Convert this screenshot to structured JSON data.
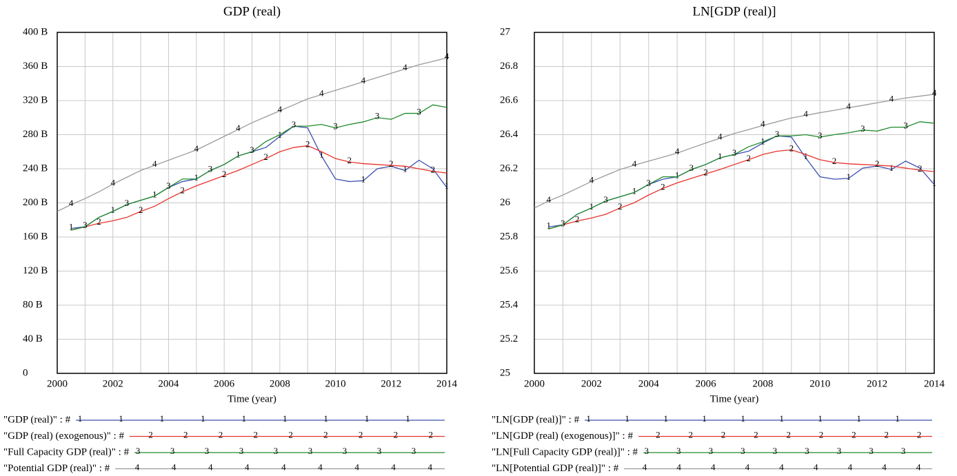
{
  "chart_data": [
    {
      "type": "line",
      "title": "GDP (real)",
      "x_label": "Time (year)",
      "grid": true,
      "xlim": [
        2000,
        2014
      ],
      "xticks": [
        2000,
        2002,
        2004,
        2006,
        2008,
        2010,
        2012,
        2014
      ],
      "ylim": [
        0,
        400000000000.0
      ],
      "yticks": [
        0,
        {
          "value": 40000000000.0,
          "label": "40 B"
        },
        {
          "value": 80000000000.0,
          "label": "80 B"
        },
        {
          "value": 120000000000.0,
          "label": "120 B"
        },
        {
          "value": 160000000000.0,
          "label": "160 B"
        },
        {
          "value": 200000000000.0,
          "label": "200 B"
        },
        {
          "value": 240000000000.0,
          "label": "240 B"
        },
        {
          "value": 280000000000.0,
          "label": "280 B"
        },
        {
          "value": 320000000000.0,
          "label": "320 B"
        },
        {
          "value": 360000000000.0,
          "label": "360 B"
        },
        {
          "value": 400000000000.0,
          "label": "400 B"
        }
      ],
      "x": [
        2000,
        2000.5,
        2001,
        2001.5,
        2002,
        2002.5,
        2003,
        2003.5,
        2004,
        2004.5,
        2005,
        2005.5,
        2006,
        2006.5,
        2007,
        2007.5,
        2008,
        2008.5,
        2009,
        2009.5,
        2010,
        2010.5,
        2011,
        2011.5,
        2012,
        2012.5,
        2013,
        2013.5,
        2014
      ],
      "series": [
        {
          "name": "\"GDP (real)\" : #",
          "marker": "1",
          "color": "#3a4fb0",
          "values": [
            null,
            170000000000.0,
            172000000000.0,
            183000000000.0,
            190000000000.0,
            198000000000.0,
            203000000000.0,
            208000000000.0,
            218000000000.0,
            225000000000.0,
            228000000000.0,
            238000000000.0,
            245000000000.0,
            255000000000.0,
            260000000000.0,
            265000000000.0,
            278000000000.0,
            290000000000.0,
            288000000000.0,
            255000000000.0,
            228000000000.0,
            225000000000.0,
            226000000000.0,
            240000000000.0,
            243000000000.0,
            238000000000.0,
            250000000000.0,
            240000000000.0,
            218000000000.0
          ]
        },
        {
          "name": "\"GDP (real) (exogenous)\" : #",
          "marker": "2",
          "color": "#e8322c",
          "values": [
            null,
            168000000000.0,
            172000000000.0,
            176000000000.0,
            179000000000.0,
            183000000000.0,
            190000000000.0,
            196000000000.0,
            205000000000.0,
            213000000000.0,
            220000000000.0,
            226000000000.0,
            232000000000.0,
            238000000000.0,
            245000000000.0,
            252000000000.0,
            260000000000.0,
            265000000000.0,
            267000000000.0,
            260000000000.0,
            252000000000.0,
            248000000000.0,
            246000000000.0,
            245000000000.0,
            244000000000.0,
            243000000000.0,
            240000000000.0,
            237000000000.0,
            235000000000.0
          ]
        },
        {
          "name": "\"Full Capacity GDP (real)\" : #",
          "marker": "3",
          "color": "#1f8a2a",
          "values": [
            null,
            168000000000.0,
            172000000000.0,
            183000000000.0,
            190000000000.0,
            198000000000.0,
            203000000000.0,
            208000000000.0,
            218000000000.0,
            228000000000.0,
            228000000000.0,
            238000000000.0,
            245000000000.0,
            255000000000.0,
            260000000000.0,
            272000000000.0,
            280000000000.0,
            290000000000.0,
            290000000000.0,
            292000000000.0,
            288000000000.0,
            292000000000.0,
            295000000000.0,
            300000000000.0,
            298000000000.0,
            305000000000.0,
            305000000000.0,
            315000000000.0,
            312000000000.0
          ]
        },
        {
          "name": "\"Potential GDP (real)\" : #",
          "marker": "4",
          "color": "#9a9a9a",
          "values": [
            190000000000.0,
            198000000000.0,
            205000000000.0,
            213000000000.0,
            222000000000.0,
            230000000000.0,
            238000000000.0,
            244000000000.0,
            250000000000.0,
            256000000000.0,
            262000000000.0,
            270000000000.0,
            278000000000.0,
            286000000000.0,
            294000000000.0,
            301000000000.0,
            308000000000.0,
            315000000000.0,
            322000000000.0,
            327000000000.0,
            332000000000.0,
            337000000000.0,
            342000000000.0,
            347000000000.0,
            352000000000.0,
            357000000000.0,
            362000000000.0,
            366000000000.0,
            370000000000.0
          ]
        }
      ]
    },
    {
      "type": "line",
      "title": "LN[GDP (real)]",
      "x_label": "Time (year)",
      "grid": true,
      "xlim": [
        2000,
        2014
      ],
      "xticks": [
        2000,
        2002,
        2004,
        2006,
        2008,
        2010,
        2012,
        2014
      ],
      "ylim": [
        25,
        27
      ],
      "yticks": [
        25,
        25.2,
        25.4,
        25.6,
        25.8,
        26,
        26.2,
        26.4,
        26.6,
        26.8,
        27
      ],
      "x": [
        2000,
        2000.5,
        2001,
        2001.5,
        2002,
        2002.5,
        2003,
        2003.5,
        2004,
        2004.5,
        2005,
        2005.5,
        2006,
        2006.5,
        2007,
        2007.5,
        2008,
        2008.5,
        2009,
        2009.5,
        2010,
        2010.5,
        2011,
        2011.5,
        2012,
        2012.5,
        2013,
        2013.5,
        2014
      ],
      "series": [
        {
          "name": "\"LN[GDP (real)]\" : #",
          "marker": "1",
          "color": "#3a4fb0",
          "values": [
            null,
            25.859,
            25.871,
            25.933,
            25.97,
            26.011,
            26.036,
            26.061,
            26.108,
            26.139,
            26.153,
            26.196,
            26.225,
            26.264,
            26.284,
            26.303,
            26.351,
            26.393,
            26.386,
            26.264,
            26.153,
            26.139,
            26.144,
            26.204,
            26.216,
            26.196,
            26.245,
            26.204,
            26.108
          ]
        },
        {
          "name": "\"LN[GDP (real) (exogenous)]\" : #",
          "marker": "2",
          "color": "#e8322c",
          "values": [
            null,
            25.847,
            25.871,
            25.894,
            25.911,
            25.933,
            25.97,
            26.001,
            26.046,
            26.085,
            26.117,
            26.144,
            26.17,
            26.196,
            26.225,
            26.253,
            26.284,
            26.303,
            26.311,
            26.284,
            26.253,
            26.237,
            26.229,
            26.225,
            26.221,
            26.216,
            26.204,
            26.192,
            26.183
          ]
        },
        {
          "name": "\"LN[Full Capacity GDP (real)]\" : #",
          "marker": "3",
          "color": "#1f8a2a",
          "values": [
            null,
            25.847,
            25.871,
            25.933,
            25.97,
            26.011,
            26.036,
            26.061,
            26.108,
            26.153,
            26.153,
            26.196,
            26.225,
            26.264,
            26.284,
            26.329,
            26.358,
            26.393,
            26.393,
            26.4,
            26.386,
            26.4,
            26.411,
            26.427,
            26.421,
            26.444,
            26.444,
            26.476,
            26.467
          ]
        },
        {
          "name": "\"LN[Potential GDP (real)]\" : #",
          "marker": "4",
          "color": "#9a9a9a",
          "values": [
            25.97,
            26.011,
            26.046,
            26.085,
            26.126,
            26.161,
            26.196,
            26.221,
            26.245,
            26.268,
            26.292,
            26.322,
            26.351,
            26.379,
            26.407,
            26.43,
            26.454,
            26.476,
            26.498,
            26.513,
            26.529,
            26.543,
            26.558,
            26.572,
            26.587,
            26.601,
            26.615,
            26.626,
            26.637
          ]
        }
      ]
    }
  ]
}
